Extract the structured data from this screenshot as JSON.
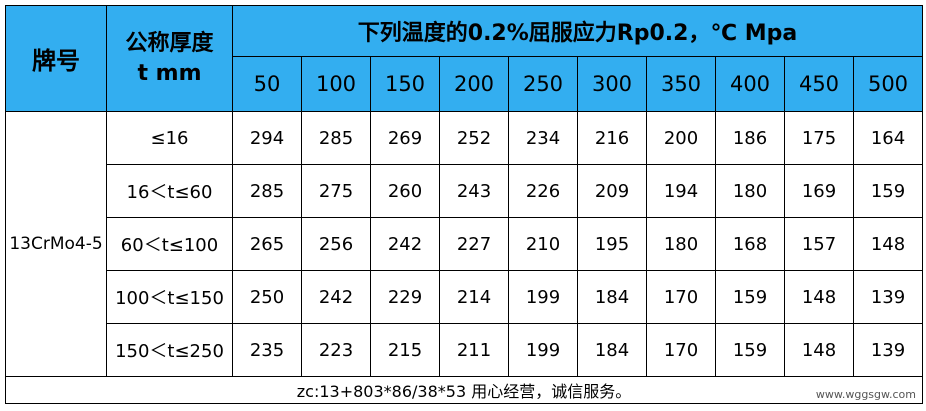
{
  "header": {
    "grade_label": "牌号",
    "thickness_label": "公称厚度",
    "thickness_unit": "t mm",
    "title": "下列温度的0.2%屈服应力Rp0.2，℃ Mpa",
    "temperatures": [
      "50",
      "100",
      "150",
      "200",
      "250",
      "300",
      "350",
      "400",
      "450",
      "500"
    ]
  },
  "grade": "13CrMo4-5",
  "rows": [
    {
      "range": "≤16",
      "values": [
        "294",
        "285",
        "269",
        "252",
        "234",
        "216",
        "200",
        "186",
        "175",
        "164"
      ]
    },
    {
      "range": "16＜t≤60",
      "values": [
        "285",
        "275",
        "260",
        "243",
        "226",
        "209",
        "194",
        "180",
        "169",
        "159"
      ]
    },
    {
      "range": "60＜t≤100",
      "values": [
        "265",
        "256",
        "242",
        "227",
        "210",
        "195",
        "180",
        "168",
        "157",
        "148"
      ]
    },
    {
      "range": "100＜t≤150",
      "values": [
        "250",
        "242",
        "229",
        "214",
        "199",
        "184",
        "170",
        "159",
        "148",
        "139"
      ]
    },
    {
      "range": "150＜t≤250",
      "values": [
        "235",
        "223",
        "215",
        "211",
        "199",
        "184",
        "170",
        "159",
        "148",
        "139"
      ]
    }
  ],
  "footer": "zc:13+803*86/38*53 用心经营，诚信服务。",
  "watermark": "www.wggsgw.com"
}
